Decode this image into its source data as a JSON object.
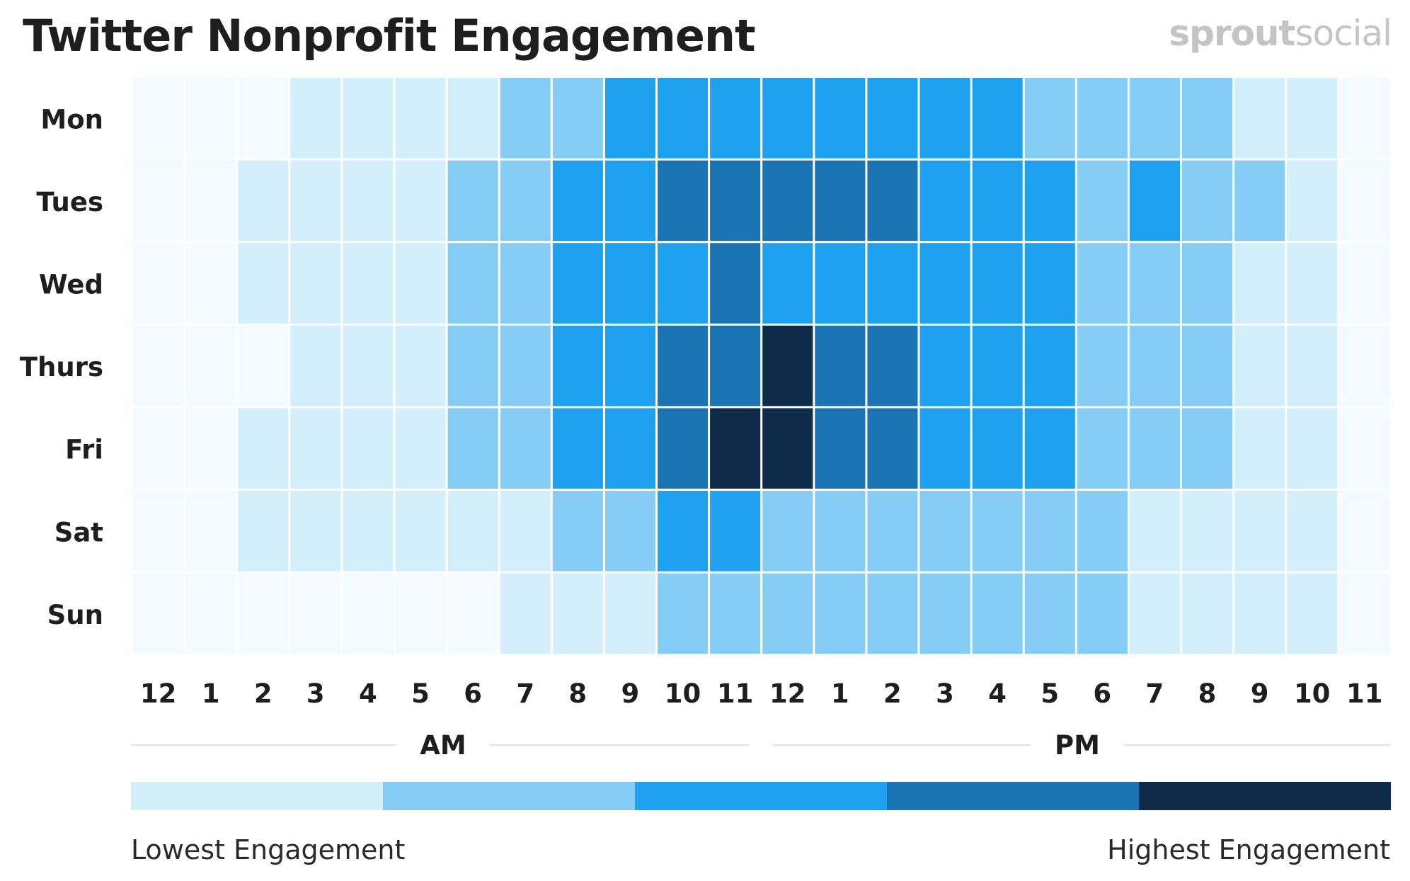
{
  "title": "Twitter Nonprofit Engagement",
  "brand": {
    "part1": "sprout",
    "part2": "social"
  },
  "chart_data": {
    "type": "heatmap",
    "title": "Twitter Nonprofit Engagement",
    "rows": [
      "Mon",
      "Tues",
      "Wed",
      "Thurs",
      "Fri",
      "Sat",
      "Sun"
    ],
    "columns": [
      "12",
      "1",
      "2",
      "3",
      "4",
      "5",
      "6",
      "7",
      "8",
      "9",
      "10",
      "11",
      "12",
      "1",
      "2",
      "3",
      "4",
      "5",
      "6",
      "7",
      "8",
      "9",
      "10",
      "11"
    ],
    "period_labels": [
      "AM",
      "PM"
    ],
    "scale": {
      "levels": [
        0,
        1,
        2,
        3,
        4,
        5
      ],
      "colors": [
        "#f3fbff",
        "#d4effc",
        "#86cdf6",
        "#1ea1ef",
        "#1a73b3",
        "#0e2c4a"
      ],
      "min_label": "Lowest Engagement",
      "max_label": "Highest Engagement"
    },
    "values": [
      [
        0,
        0,
        0,
        1,
        1,
        1,
        1,
        2,
        2,
        3,
        3,
        3,
        3,
        3,
        3,
        3,
        3,
        2,
        2,
        2,
        2,
        1,
        1,
        0
      ],
      [
        0,
        0,
        1,
        1,
        1,
        1,
        2,
        2,
        3,
        3,
        4,
        4,
        4,
        4,
        4,
        3,
        3,
        3,
        2,
        3,
        2,
        2,
        1,
        0
      ],
      [
        0,
        0,
        1,
        1,
        1,
        1,
        2,
        2,
        3,
        3,
        3,
        4,
        3,
        3,
        3,
        3,
        3,
        3,
        2,
        2,
        2,
        1,
        1,
        0
      ],
      [
        0,
        0,
        0,
        1,
        1,
        1,
        2,
        2,
        3,
        3,
        4,
        4,
        5,
        4,
        4,
        3,
        3,
        3,
        2,
        2,
        2,
        1,
        1,
        0
      ],
      [
        0,
        0,
        1,
        1,
        1,
        1,
        2,
        2,
        3,
        3,
        4,
        5,
        5,
        4,
        4,
        3,
        3,
        3,
        2,
        2,
        2,
        1,
        1,
        0
      ],
      [
        0,
        0,
        1,
        1,
        1,
        1,
        1,
        1,
        2,
        2,
        3,
        3,
        2,
        2,
        2,
        2,
        2,
        2,
        2,
        1,
        1,
        1,
        1,
        0
      ],
      [
        0,
        0,
        0,
        0,
        0,
        0,
        0,
        1,
        1,
        1,
        2,
        2,
        2,
        2,
        2,
        2,
        2,
        2,
        2,
        1,
        1,
        1,
        1,
        0
      ]
    ]
  }
}
